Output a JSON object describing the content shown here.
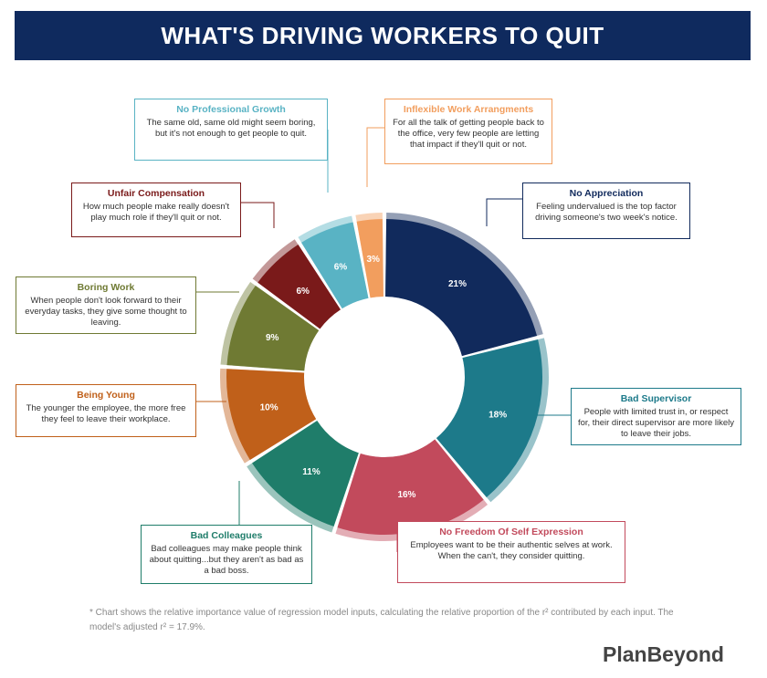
{
  "title": "WHAT'S DRIVING WORKERS TO QUIT",
  "footnote": "* Chart shows the relative importance value of regression model inputs, calculating the relative proportion of the r² contributed by each input. The model's adjusted r² = 17.9%.",
  "brand": "PlanBeyond",
  "chart_data": {
    "type": "pie",
    "series": [
      {
        "label": "No Appreciation",
        "value": 21,
        "display": "21%",
        "color": "#112a5c",
        "desc": "Feeling undervalued is the top factor driving someone's two week's notice."
      },
      {
        "label": "Bad Supervisor",
        "value": 18,
        "display": "18%",
        "color": "#1d7a8a",
        "desc": "People with limited trust in, or respect for, their direct supervisor are more likely to leave their jobs."
      },
      {
        "label": "No Freedom Of Self Expression",
        "value": 16,
        "display": "16%",
        "color": "#c24a5c",
        "desc": "Employees want to be their authentic selves at work. When the can't, they consider quitting."
      },
      {
        "label": "Bad Colleagues",
        "value": 11,
        "display": "11%",
        "color": "#1f7d6a",
        "desc": "Bad colleagues may make people think about quitting...but they aren't as bad as a bad boss."
      },
      {
        "label": "Being Young",
        "value": 10,
        "display": "10%",
        "color": "#c0601a",
        "desc": "The younger the employee, the more free they feel to leave their workplace."
      },
      {
        "label": "Boring Work",
        "value": 9,
        "display": "9%",
        "color": "#6f7a33",
        "desc": "When people don't look forward to their everyday tasks, they give some thought to leaving."
      },
      {
        "label": "Unfair Compensation",
        "value": 6,
        "display": "6%",
        "color": "#7a1a1a",
        "desc": "How much people make really doesn't play much role if they'll quit or not."
      },
      {
        "label": "No Professional Growth",
        "value": 6,
        "display": "6%",
        "color": "#59b3c4",
        "desc": "The same old, same old might seem boring, but it's not enough to get people to quit."
      },
      {
        "label": "Inflexible Work Arrangments",
        "value": 3,
        "display": "3%",
        "color": "#f29e5e",
        "desc": "For all the talk of getting people back to the office, very few people are letting that impact if they'll quit or not."
      }
    ]
  }
}
